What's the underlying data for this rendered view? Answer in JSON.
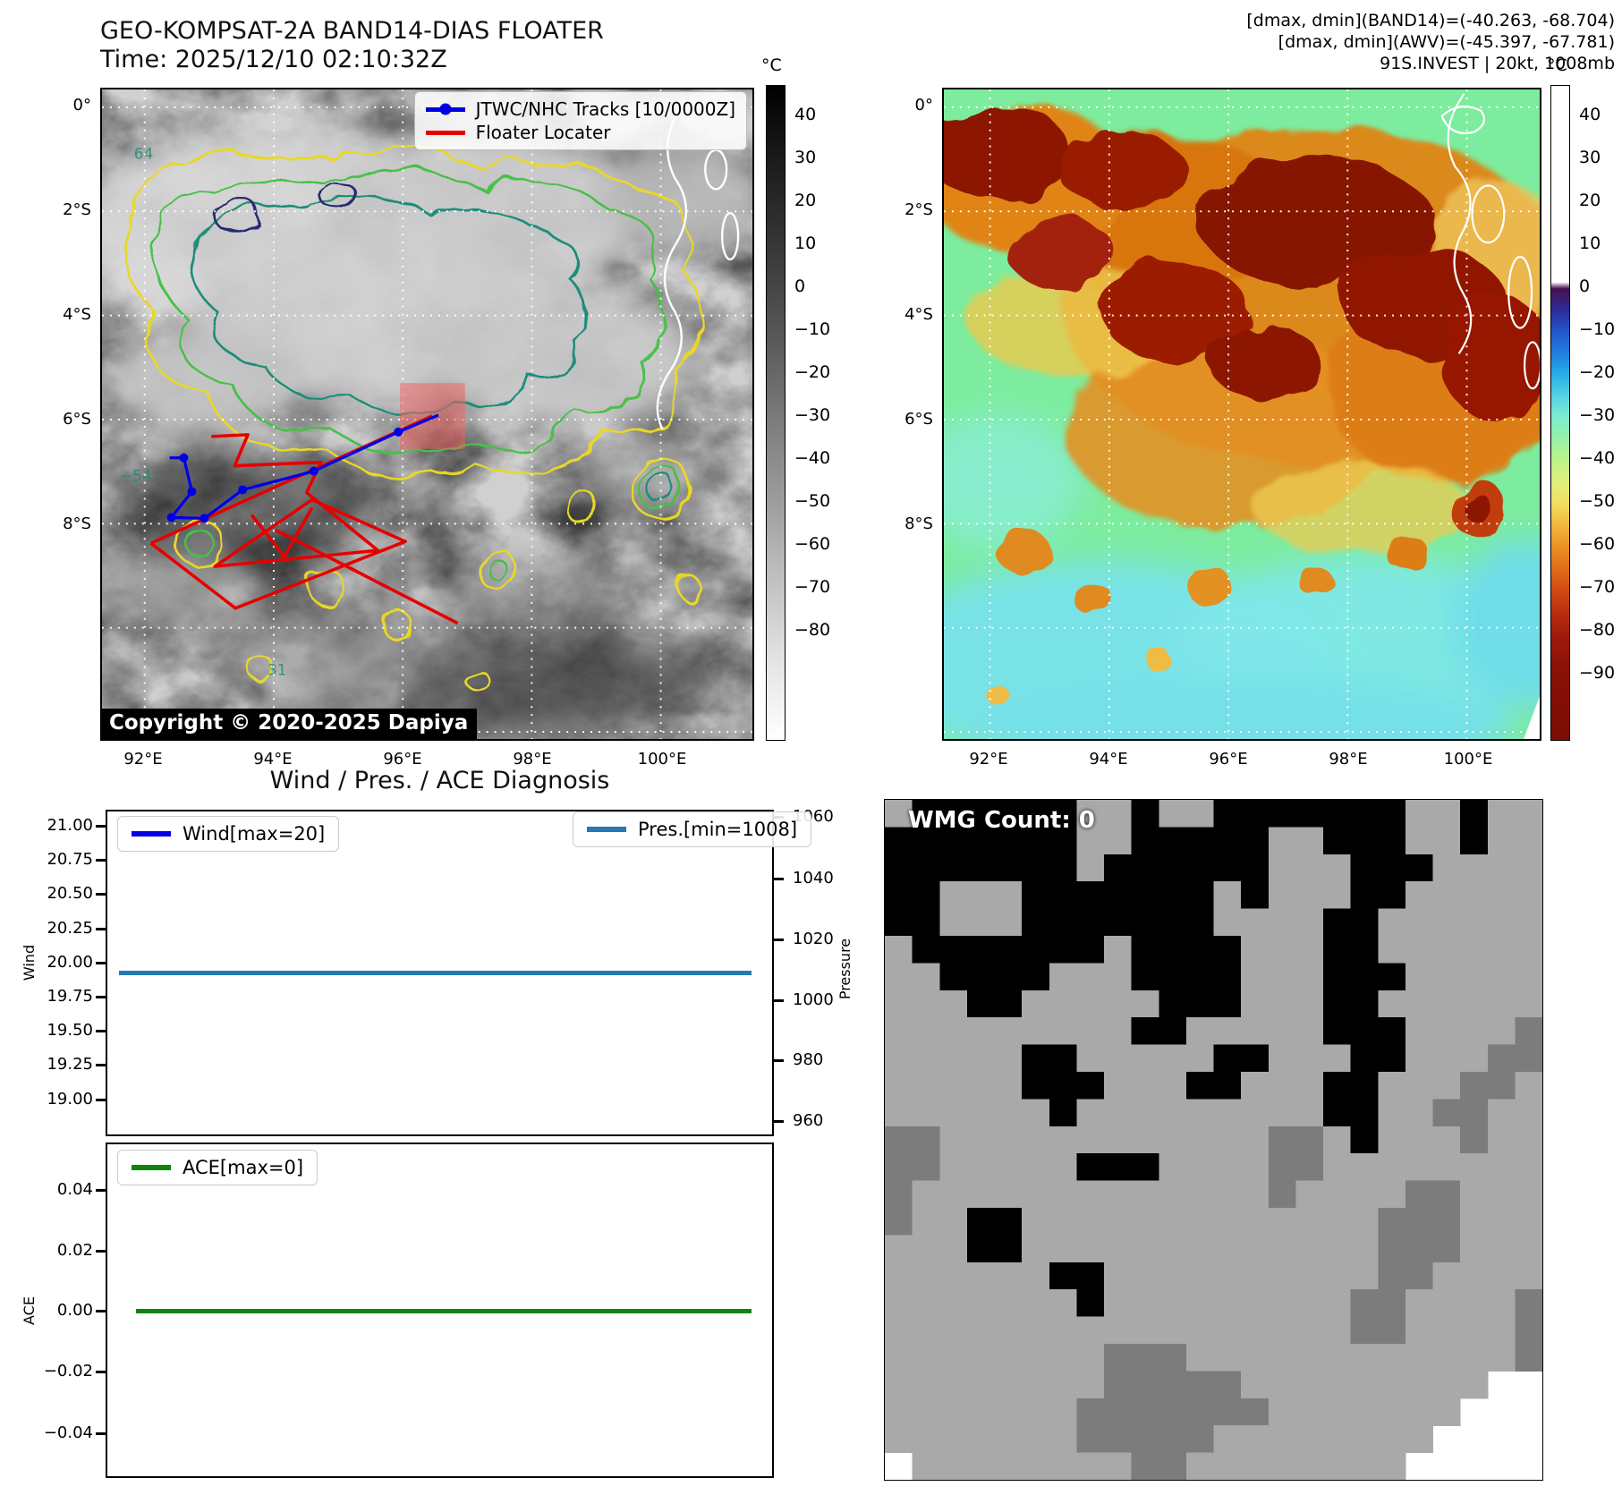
{
  "band14": {
    "title": "GEO-KOMPSAT-2A BAND14-DIAS FLOATER",
    "time_label": "Time: 2025/12/10 02:10:32Z",
    "legend": {
      "jtwc_label": "JTWC/NHC Tracks [10/0000Z]",
      "floater_label": "Floater Locater",
      "jtwc_color": "#0000e6",
      "floater_color": "#e60000"
    },
    "copyright": "Copyright © 2020-2025 Dapiya",
    "lat_ticks": [
      "0°",
      "2°S",
      "4°S",
      "6°S",
      "8°S"
    ],
    "lon_ticks": [
      "92°E",
      "94°E",
      "96°E",
      "98°E",
      "100°E"
    ],
    "colorbar": {
      "unit": "°C",
      "ticks": [
        "40",
        "30",
        "20",
        "10",
        "0",
        "−10",
        "−20",
        "−30",
        "−40",
        "−50",
        "−60",
        "−70",
        "−80"
      ]
    },
    "contour_labels": [
      "64",
      "−54",
      "31"
    ]
  },
  "awv": {
    "header_lines": [
      "[dmax, dmin](BAND14)=(-40.263, -68.704)",
      "[dmax, dmin](AWV)=(-45.397, -67.781)",
      "91S.INVEST | 20kt, 1008mb"
    ],
    "lat_ticks": [
      "0°",
      "2°S",
      "4°S",
      "6°S",
      "8°S"
    ],
    "lon_ticks": [
      "92°E",
      "94°E",
      "96°E",
      "98°E",
      "100°E"
    ],
    "colorbar": {
      "unit": "°C",
      "ticks": [
        "40",
        "30",
        "20",
        "10",
        "0",
        "−10",
        "−20",
        "−30",
        "−40",
        "−50",
        "−60",
        "−70",
        "−80",
        "−90"
      ]
    }
  },
  "diagnosis": {
    "title": "Wind / Pres. / ACE Diagnosis",
    "wind_panel": {
      "legend_wind": "Wind[max=20]",
      "legend_pres": "Pres.[min=1008]",
      "ylabel_left": "Wind",
      "ylabel_right": "Pressure",
      "yticks_left": [
        "21.00",
        "20.75",
        "20.50",
        "20.25",
        "20.00",
        "19.75",
        "19.50",
        "19.25",
        "19.00"
      ],
      "yticks_right": [
        "1060",
        "1040",
        "1020",
        "1000",
        "980",
        "960"
      ],
      "wind_color": "#0000e6",
      "pres_color": "#2679b2"
    },
    "ace_panel": {
      "legend_ace": "ACE[max=0]",
      "ylabel": "ACE",
      "yticks": [
        "0.04",
        "0.02",
        "0.00",
        "−0.02",
        "−0.04"
      ],
      "ace_color": "#0b860b"
    }
  },
  "wmg": {
    "count_label": "WMG Count: 0",
    "palette": {
      "k": "#000000",
      "l": "#a9a9a9",
      "m": "#7c7c7c",
      "w": "#ffffff"
    },
    "grid": [
      "lkkkkkkllkllkkkkkkkllkll",
      "kkkkkkkllkkkkkllkkkllkll",
      "kkkkkkklkkkkkklllkkkllll",
      "kklllkkkkkkklklllkklllll",
      "kklllkkkkkkkllllkkllllll",
      "lkkkkkkklkkkklllkkllllll",
      "llkkkklllkkkklllkkklllll",
      "lllkklllllkkklllkkllllll",
      "lllllllllkklllllkkkllllm",
      "lllllkklllllkklllkklllmm",
      "lllllkkklllkklllkklllmml",
      "llllllklllllllllkkllmmll",
      "mmllllllllllllmmlklllmll",
      "mmlllllkkkllllmmllllllll",
      "mlllllllllllllmllllmmlll",
      "mllkklllllllllllllmmmlll",
      "lllkklllllllllllllmmmlll",
      "llllllkkllllllllllmmllll",
      "lllllllklllllllllmmllllm",
      "lllllllllllllllllmmllllm",
      "llllllllmmmllllllllllllm",
      "llllllllmmmmmlllllllllww",
      "lllllllmmmmmmmlllllllwww",
      "lllllllmmmmmllllllllwwww",
      "wllllllllmmllllllllwwwww"
    ]
  },
  "chart_data": [
    {
      "type": "line",
      "panel": "wind_pressure",
      "title": "Wind / Pres. / ACE Diagnosis",
      "ylabel": "Wind",
      "y2label": "Pressure",
      "ylim": [
        19.0,
        21.0
      ],
      "yticks": [
        21.0,
        20.75,
        20.5,
        20.25,
        20.0,
        19.75,
        19.5,
        19.25,
        19.0
      ],
      "y2lim": [
        1060,
        960
      ],
      "y2ticks": [
        1060,
        1040,
        1020,
        1000,
        980,
        960
      ],
      "grid": false,
      "series": [
        {
          "name": "Wind[max=20]",
          "axis": "left",
          "constant_value": 20,
          "color": "#0000e6",
          "legend_position": "upper left"
        },
        {
          "name": "Pres.[min=1008]",
          "axis": "right",
          "constant_value": 1008,
          "color": "#2679b2",
          "legend_position": "upper right"
        }
      ]
    },
    {
      "type": "line",
      "panel": "ace",
      "ylabel": "ACE",
      "ylim": [
        -0.05,
        0.05
      ],
      "yticks": [
        0.04,
        0.02,
        0.0,
        -0.02,
        -0.04
      ],
      "grid": false,
      "series": [
        {
          "name": "ACE[max=0]",
          "constant_value": 0,
          "color": "#0b860b",
          "legend_position": "upper left"
        }
      ]
    },
    {
      "type": "heatmap",
      "panel": "band14_ir_map",
      "note": "grayscale IR satellite image with contours",
      "xlabel_ticks": [
        "92°E",
        "94°E",
        "96°E",
        "98°E",
        "100°E"
      ],
      "ylabel_ticks": [
        "0°",
        "2°S",
        "4°S",
        "6°S",
        "8°S"
      ],
      "colorbar_unit": "°C",
      "colorbar_range": [
        40,
        -80
      ]
    },
    {
      "type": "heatmap",
      "panel": "awv_enhanced_map",
      "note": "color-enhanced IR satellite image",
      "xlabel_ticks": [
        "92°E",
        "94°E",
        "96°E",
        "98°E",
        "100°E"
      ],
      "ylabel_ticks": [
        "0°",
        "2°S",
        "4°S",
        "6°S",
        "8°S"
      ],
      "colorbar_unit": "°C",
      "colorbar_range": [
        40,
        -90
      ]
    }
  ]
}
